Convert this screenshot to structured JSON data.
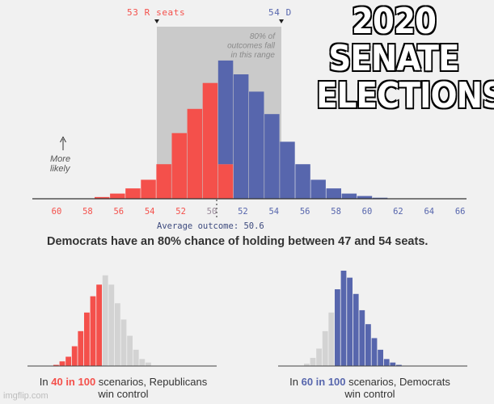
{
  "meme_title": [
    "2020",
    "SENATE",
    "ELECTIONS"
  ],
  "colors": {
    "rep": "#f4504b",
    "dem": "#5766ad",
    "gray": "#d3d3d3",
    "band": "#cacaca",
    "axis": "#333333"
  },
  "chart_data": [
    {
      "type": "bar",
      "x_tick_labels": [
        "60",
        "58",
        "56",
        "54",
        "52",
        "50",
        "52",
        "54",
        "56",
        "58",
        "60",
        "62",
        "64",
        "66"
      ],
      "bins": [
        {
          "rep": 0.5,
          "dem": 0
        },
        {
          "rep": 1.5,
          "dem": 0
        },
        {
          "rep": 3,
          "dem": 0
        },
        {
          "rep": 5.5,
          "dem": 0
        },
        {
          "rep": 10,
          "dem": 0
        },
        {
          "rep": 19,
          "dem": 0
        },
        {
          "rep": 26,
          "dem": 0
        },
        {
          "rep": 33.5,
          "dem": 0
        },
        {
          "rep": 10,
          "dem": 30
        },
        {
          "rep": 0,
          "dem": 36
        },
        {
          "rep": 0,
          "dem": 31
        },
        {
          "rep": 0,
          "dem": 24.5
        },
        {
          "rep": 0,
          "dem": 16.5
        },
        {
          "rep": 0,
          "dem": 10
        },
        {
          "rep": 0,
          "dem": 5.5
        },
        {
          "rep": 0,
          "dem": 3
        },
        {
          "rep": 0,
          "dem": 1.5
        },
        {
          "rep": 0,
          "dem": 0.8
        },
        {
          "rep": 0,
          "dem": 0.3
        }
      ],
      "range_band": {
        "from_label": "53 R seats",
        "to_label": "54 D",
        "note": [
          "80% of",
          "outcomes fall",
          "in this range"
        ]
      },
      "y_note": [
        "More",
        "likely"
      ],
      "average_label": "Average outcome: 50.6"
    },
    {
      "type": "bar",
      "values": [
        0.5,
        2,
        4,
        8.5,
        15,
        23,
        30,
        35,
        39,
        35,
        27,
        20,
        13,
        7,
        3,
        1.5
      ],
      "highlight_count": 8,
      "highlight": "rep"
    },
    {
      "type": "bar",
      "values": [
        1,
        3.5,
        7.5,
        15,
        23,
        33,
        41,
        38,
        31,
        24,
        18,
        12,
        7,
        3,
        1.5,
        0.5
      ],
      "highlight_from": 5,
      "highlight": "dem"
    }
  ],
  "caption": "Democrats have an 80% chance of holding between 47 and 54 seats.",
  "left_sub": {
    "pre": "In ",
    "hl": "40 in 100",
    "post": " scenarios, Republicans",
    "line2": "win control"
  },
  "right_sub": {
    "pre": "In ",
    "hl": "60 in 100",
    "post": " scenarios, Democrats",
    "line2": "win control"
  },
  "watermark": "imgflip.com"
}
